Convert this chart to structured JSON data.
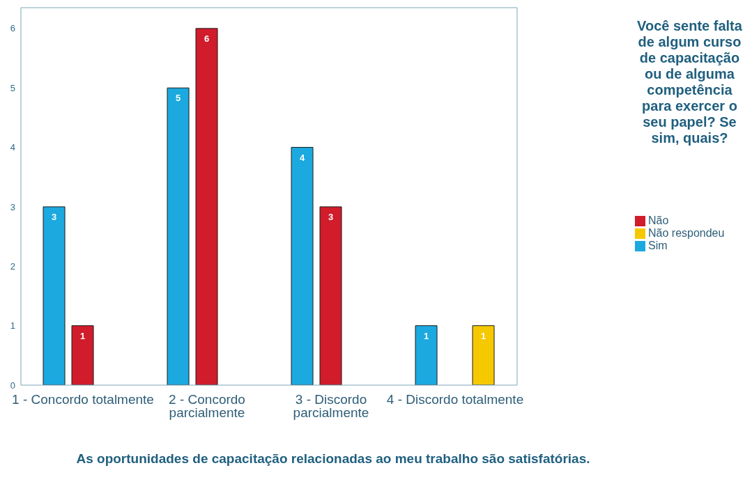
{
  "chart_data": {
    "type": "bar",
    "xlabel": "As oportunidades de capacitação relacionadas ao meu trabalho são satisfatórias.",
    "legend_title": "Você sente falta de algum curso de capacitação ou de alguma competência para exercer o seu papel? Se sim, quais?",
    "categories": [
      "1 - Concordo totalmente",
      "2 - Concordo parcialmente",
      "3 - Discordo parcialmente",
      "4 - Discordo totalmente"
    ],
    "series": [
      {
        "name": "Sim",
        "color": "#1ba9e0",
        "values": [
          3,
          5,
          4,
          1
        ]
      },
      {
        "name": "Não",
        "color": "#d01c2b",
        "values": [
          1,
          6,
          3,
          null
        ]
      },
      {
        "name": "Não respondeu",
        "color": "#f6c800",
        "values": [
          null,
          null,
          null,
          1
        ]
      }
    ],
    "ylim": [
      0,
      6.35
    ],
    "yticks": [
      0,
      1,
      2,
      3,
      4,
      5,
      6
    ],
    "grid": false,
    "legend": "right",
    "data_labels": true
  }
}
